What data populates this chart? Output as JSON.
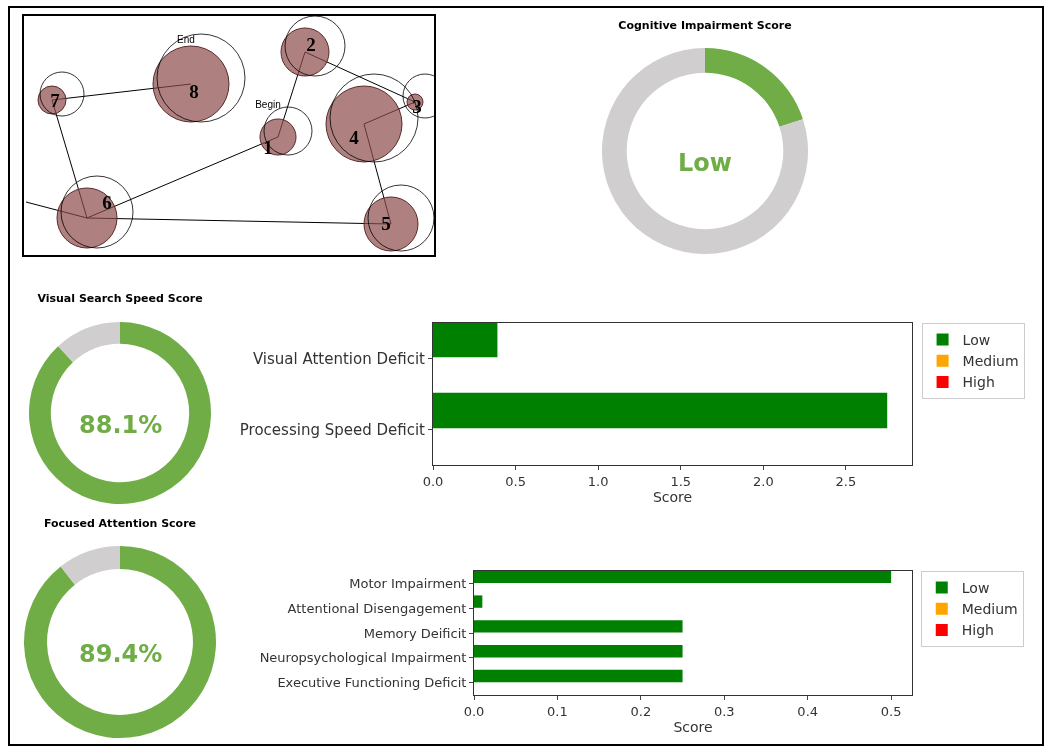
{
  "chart_data": [
    {
      "type": "other",
      "categories": [
        "1",
        "2",
        "3",
        "4",
        "5",
        "6",
        "7",
        "8"
      ],
      "annotations": [
        "Begin",
        "End"
      ]
    },
    {
      "type": "donut",
      "title": "Cognitive Impairment Score",
      "categories": [
        null,
        null
      ],
      "values": [
        20,
        80
      ],
      "colors": [
        "#70ad47",
        "#d0cece"
      ],
      "annotations": [
        "Low"
      ]
    },
    {
      "type": "donut",
      "title": "Visual Search Speed Score",
      "categories": [
        null,
        null
      ],
      "values": [
        88.1,
        11.9
      ],
      "colors": [
        "#70ad47",
        "#d0cece"
      ],
      "annotations": [
        "88.1%"
      ]
    },
    {
      "type": "bar",
      "orientation": "horizontal",
      "categories": [
        "Visual Attention Deficit",
        "Processing Speed Deficit"
      ],
      "xlabel": "Score",
      "xlim": [
        0,
        2.9
      ],
      "xticks": [
        {
          "value": 0,
          "label": "0.0"
        },
        {
          "value": 0.5,
          "label": "0.5"
        },
        {
          "value": 1,
          "label": "1.0"
        },
        {
          "value": 1.5,
          "label": "1.5"
        },
        {
          "value": 2,
          "label": "2.0"
        },
        {
          "value": 2.5,
          "label": "2.5"
        }
      ],
      "legend": "right",
      "grid": false,
      "series": [
        {
          "name": "Low",
          "color": "#008000",
          "values": [
            0.39,
            2.75
          ]
        },
        {
          "name": "Medium",
          "color": "#ffa500",
          "values": [
            null,
            null
          ]
        },
        {
          "name": "High",
          "color": "#ff0000",
          "values": [
            null,
            null
          ]
        }
      ]
    },
    {
      "type": "donut",
      "title": "Focused Attention Score",
      "categories": [
        null,
        null
      ],
      "values": [
        89.4,
        10.6
      ],
      "colors": [
        "#70ad47",
        "#d0cece"
      ],
      "annotations": [
        "89.4%"
      ]
    },
    {
      "type": "bar",
      "orientation": "horizontal",
      "categories": [
        "Motor Impairment",
        "Attentional Disengagement",
        "Memory Deificit",
        "Neuropsychological Impairment",
        "Executive Functioning Deficit"
      ],
      "xlabel": "Score",
      "xlim": [
        0,
        0.525
      ],
      "xticks": [
        {
          "value": 0,
          "label": "0.0"
        },
        0.1,
        0.2,
        0.3,
        0.4,
        0.5
      ],
      "legend": "right",
      "grid": false,
      "series": [
        {
          "name": "Low",
          "color": "#008000",
          "values": [
            0.5,
            0.01,
            0.25,
            0.25,
            0.25
          ]
        },
        {
          "name": "Medium",
          "color": "#ffa500",
          "values": [
            null,
            null,
            null,
            null,
            null
          ]
        },
        {
          "name": "High",
          "color": "#ff0000",
          "values": [
            null,
            null,
            null,
            null,
            null
          ]
        }
      ]
    }
  ]
}
